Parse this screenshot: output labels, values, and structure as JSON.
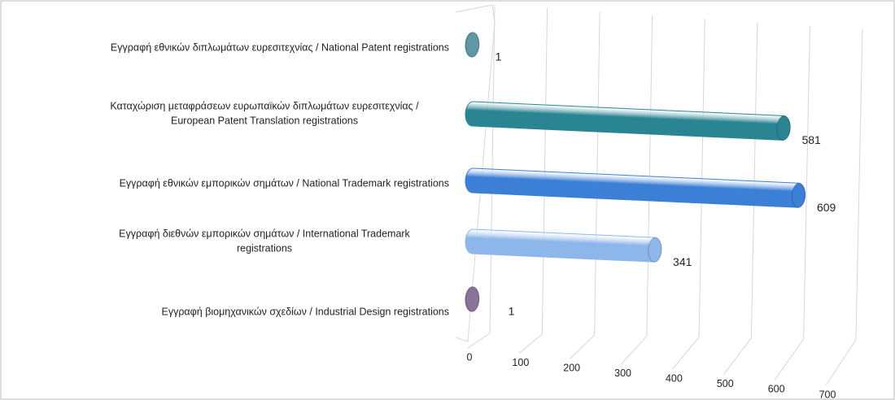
{
  "chart_data": {
    "type": "bar3d",
    "categories": [
      [
        "Εγγραφή  εθνικών διπλωμάτων ευρεσιτεχνίας / National Patent registrations"
      ],
      [
        "Καταχώριση μεταφράσεων ευρωπαϊκών διπλωμάτων ευρεσιτεχνίας /",
        "European Patent Translation registrations"
      ],
      [
        "Εγγραφή  εθνικών εμπορικών σημάτων / National Trademark registrations"
      ],
      [
        "Εγγραφή  διεθνών εμπορικών σημάτων / International Trademark",
        "registrations"
      ],
      [
        "Εγγραφή  βιομηχανικών σχεδίων / Industrial Design registrations"
      ]
    ],
    "values": [
      1,
      581,
      609,
      341,
      1
    ],
    "colors": [
      "#5f98a6",
      "#2a8593",
      "#3b7fd6",
      "#8db6ea",
      "#8a7499"
    ],
    "xlim": [
      0,
      700
    ],
    "xticks": [
      0,
      100,
      200,
      300,
      400,
      500,
      600,
      700
    ],
    "grid": true
  }
}
